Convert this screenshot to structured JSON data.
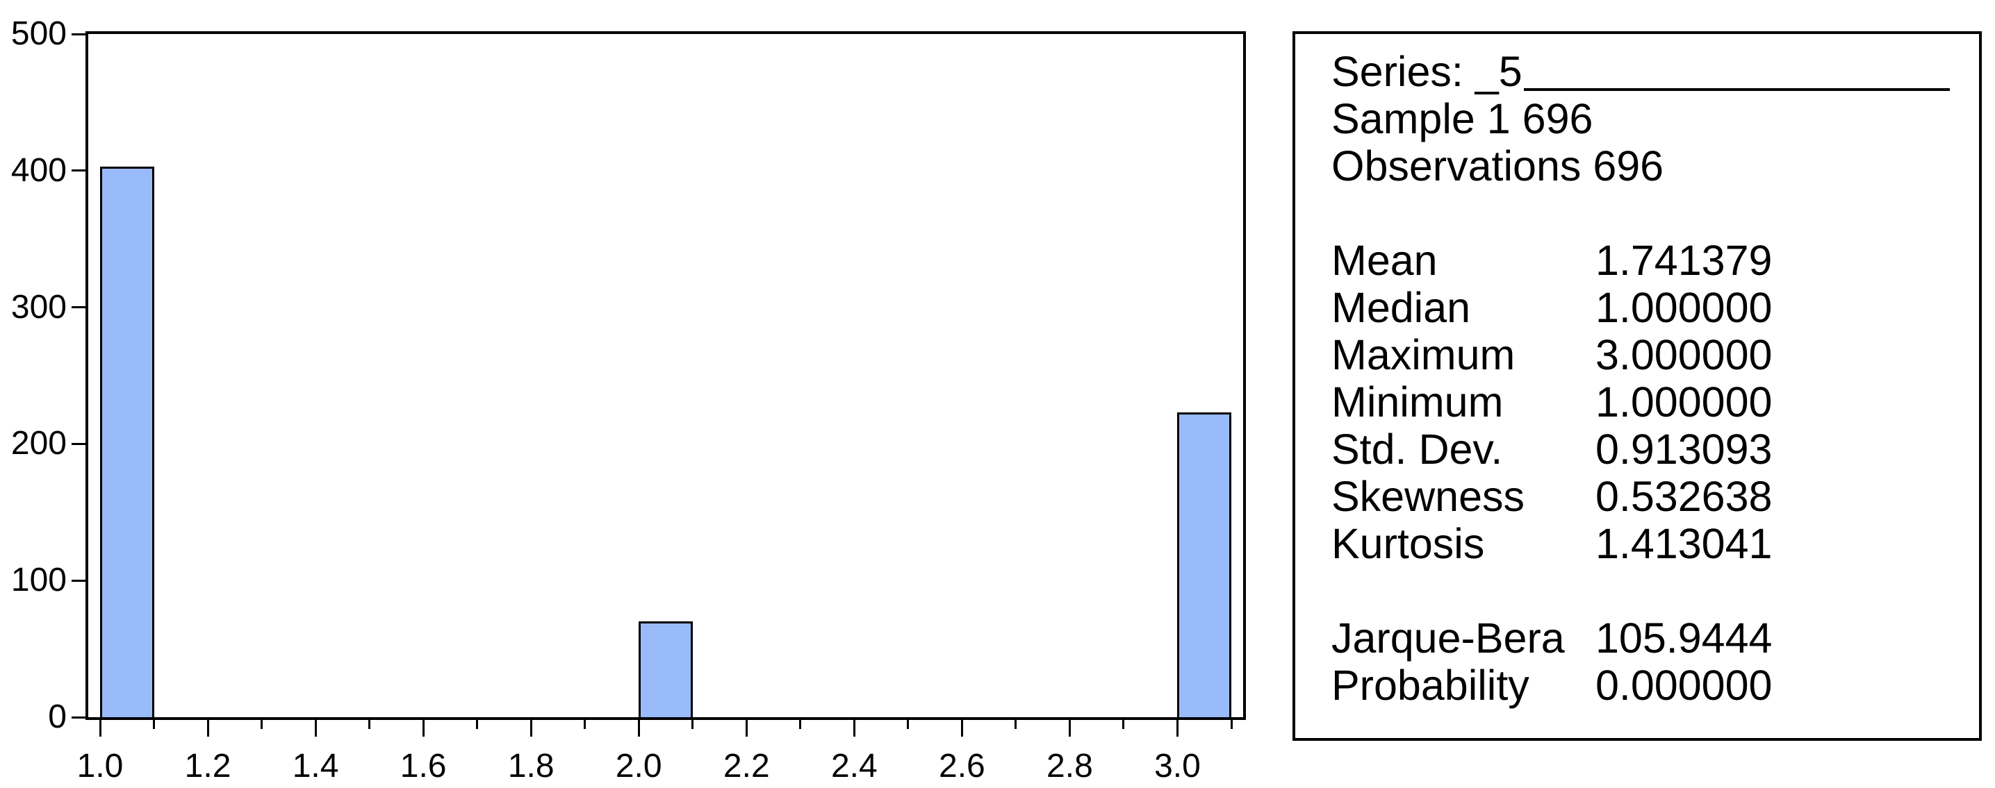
{
  "panel": {
    "series_title": "Series: _5",
    "sample": "Sample 1 696",
    "observations": "Observations 696",
    "stats": [
      {
        "label": "Mean",
        "value": "1.741379"
      },
      {
        "label": "Median",
        "value": "1.000000"
      },
      {
        "label": "Maximum",
        "value": "3.000000"
      },
      {
        "label": "Minimum",
        "value": "1.000000"
      },
      {
        "label": "Std. Dev.",
        "value": "0.913093"
      },
      {
        "label": "Skewness",
        "value": "0.532638"
      },
      {
        "label": "Kurtosis",
        "value": "1.413041"
      }
    ],
    "tests": [
      {
        "label": "Jarque-Bera",
        "value": "105.9444"
      },
      {
        "label": "Probability",
        "value": "0.000000"
      }
    ]
  },
  "chart_data": {
    "type": "bar",
    "subtype": "histogram",
    "title": "",
    "xlabel": "",
    "ylabel": "",
    "bins": [
      {
        "start": 1.0,
        "end": 1.1,
        "count": 403
      },
      {
        "start": 2.0,
        "end": 2.1,
        "count": 70
      },
      {
        "start": 3.0,
        "end": 3.1,
        "count": 223
      }
    ],
    "bin_width": 0.1,
    "total_observations": 696,
    "x_min": 1.0,
    "x_max": 3.1,
    "x_tick_step": 0.1,
    "x_label_step": 0.2,
    "x_tick_labels": [
      "1.0",
      "1.2",
      "1.4",
      "1.6",
      "1.8",
      "2.0",
      "2.2",
      "2.4",
      "2.6",
      "2.8",
      "3.0"
    ],
    "y_ticks": [
      "0",
      "100",
      "200",
      "300",
      "400",
      "500"
    ],
    "ylim": [
      0,
      500
    ],
    "grid": false,
    "legend": "none",
    "bar_fill": "#99BBFA",
    "bar_border": "#000000",
    "axis_color": "#000000",
    "background": "#FFFFFF"
  }
}
